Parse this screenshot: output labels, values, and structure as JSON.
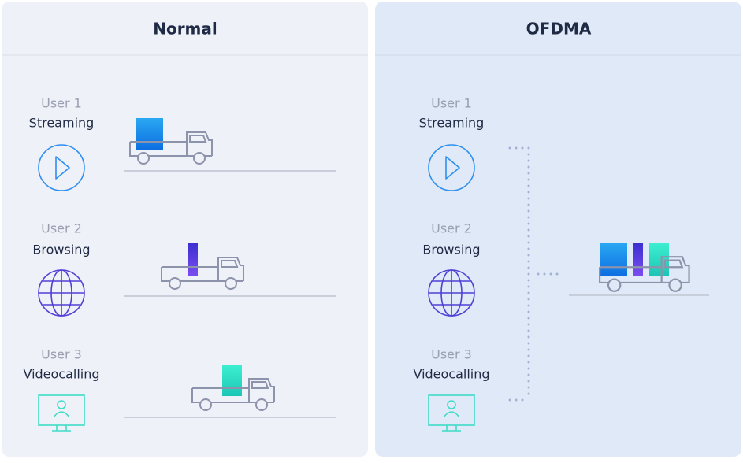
{
  "panels": [
    {
      "title": "Normal",
      "users": [
        {
          "user": "User 1",
          "activity": "Streaming"
        },
        {
          "user": "User 2",
          "activity": "Browsing"
        },
        {
          "user": "User 3",
          "activity": "Videocalling"
        }
      ]
    },
    {
      "title": "OFDMA",
      "users": [
        {
          "user": "User 1",
          "activity": "Streaming"
        },
        {
          "user": "User 2",
          "activity": "Browsing"
        },
        {
          "user": "User 3",
          "activity": "Videocalling"
        }
      ]
    }
  ]
}
